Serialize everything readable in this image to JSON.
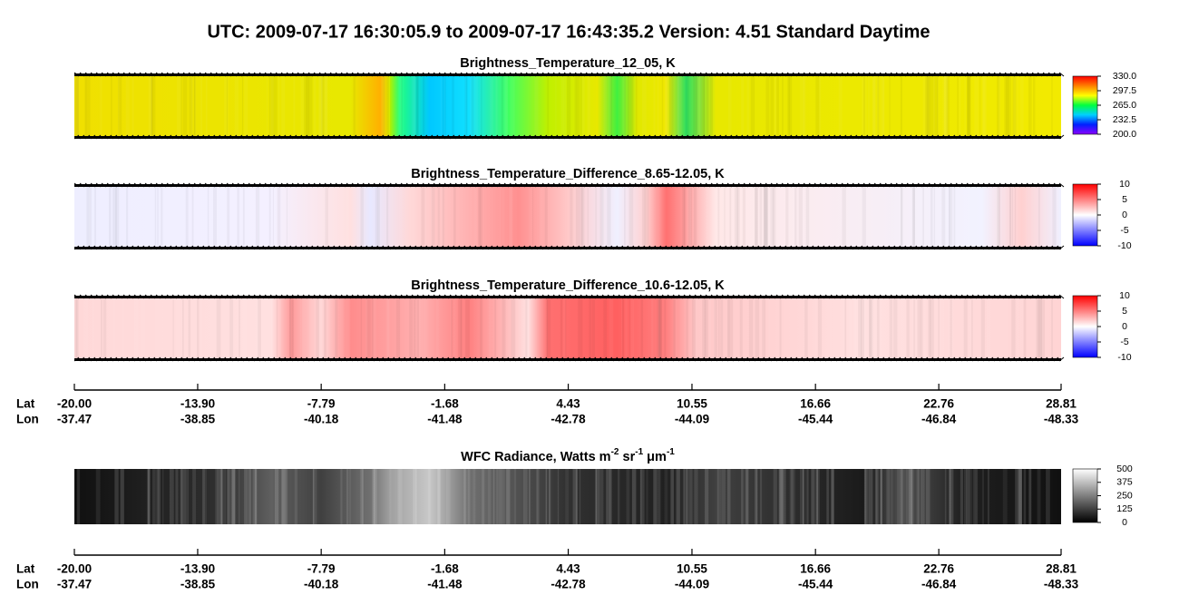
{
  "title": "UTC:  2009-07-17   16:30:05.9  to  2009-07-17   16:43:35.2    Version: 4.51  Standard Daytime",
  "chart_data": [
    {
      "type": "heatmap",
      "title": [
        "Brightness_Temperature_12_05, K"
      ],
      "clim": [
        200,
        330
      ],
      "cticks": [
        {
          "value": 330,
          "label": "330.0"
        },
        {
          "value": 297.5,
          "label": "297.5"
        },
        {
          "value": 265,
          "label": "265.0"
        },
        {
          "value": 232.5,
          "label": "232.5"
        },
        {
          "value": 200,
          "label": "200.0"
        }
      ],
      "colormap": [
        "#8a00ff",
        "#0020ff",
        "#00d0ff",
        "#00ff40",
        "#ffff00",
        "#ff8000",
        "#ff0000"
      ]
    },
    {
      "type": "heatmap",
      "title": [
        "Brightness_Temperature_Difference_8.65-12.05, K"
      ],
      "clim": [
        -10,
        10
      ],
      "cticks": [
        10,
        5,
        0,
        -5,
        -10
      ],
      "colormap": [
        "#0000ff",
        "#ffffff",
        "#ff0000"
      ]
    },
    {
      "type": "heatmap",
      "title": [
        "Brightness_Temperature_Difference_10.6-12.05, K"
      ],
      "clim": [
        -10,
        10
      ],
      "cticks": [
        10,
        5,
        0,
        -5,
        -10
      ],
      "colormap": [
        "#0000ff",
        "#ffffff",
        "#ff0000"
      ]
    },
    {
      "type": "heatmap",
      "title": [
        "WFC Radiance, Watts m",
        "-2",
        " sr",
        "-1",
        " μm",
        "-1"
      ],
      "clim": [
        0,
        500
      ],
      "cticks": [
        500,
        375,
        250,
        125,
        0
      ],
      "colormap": [
        "#000000",
        "#ffffff"
      ]
    }
  ],
  "x_axes": [
    {
      "lat_label": "Lat",
      "lon_label": "Lon",
      "xlim": [
        -20,
        28.81
      ],
      "xticks": [
        {
          "value": -20,
          "label": "-20.00"
        },
        {
          "value": -13.9,
          "label": "-13.90"
        },
        -7.79,
        -1.68,
        4.43,
        10.55,
        16.66,
        22.76,
        28.81
      ],
      "lon_ticks": [
        "-37.47",
        "-38.85",
        "-40.18",
        "-41.48",
        "-42.78",
        "-44.09",
        "-45.44",
        "-46.84",
        "-48.33"
      ]
    },
    {
      "lat_label": "Lat",
      "lon_label": "Lon",
      "xlim": [
        -20,
        28.81
      ],
      "xticks": [
        {
          "value": -20,
          "label": "-20.00"
        },
        {
          "value": -13.9,
          "label": "-13.90"
        },
        -7.79,
        -1.68,
        4.43,
        10.55,
        16.66,
        22.76,
        28.81
      ],
      "lon_ticks": [
        "-37.47",
        "-38.85",
        "-40.18",
        "-41.48",
        "-42.78",
        "-44.09",
        "-45.44",
        "-46.84",
        "-48.33"
      ]
    }
  ]
}
